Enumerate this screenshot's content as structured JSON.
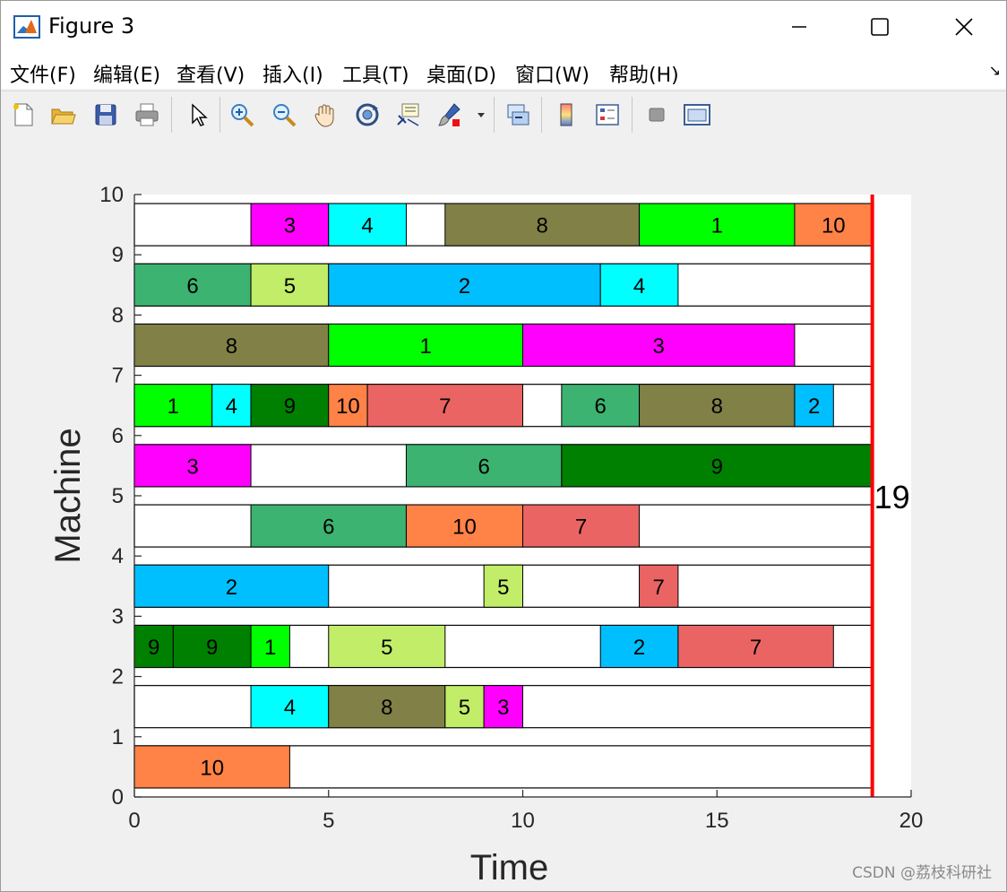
{
  "window": {
    "title": "Figure 3",
    "icon": "matlab-icon",
    "controls": {
      "minimize": "minimize-icon",
      "maximize": "maximize-icon",
      "close": "close-icon"
    }
  },
  "menu": {
    "items": [
      "文件(F)",
      "编辑(E)",
      "查看(V)",
      "插入(I)",
      "工具(T)",
      "桌面(D)",
      "窗口(W)",
      "帮助(H)"
    ],
    "corner": "↘"
  },
  "toolbar": {
    "buttons": [
      "new-figure-icon",
      "open-file-icon",
      "save-icon",
      "print-icon",
      "select-arrow-icon",
      "zoom-in-icon",
      "zoom-out-icon",
      "pan-hand-icon",
      "rotate-3d-icon",
      "data-cursor-icon",
      "brush-icon",
      "link-plot-icon",
      "colorbar-icon",
      "legend-icon",
      "hide-tools-icon",
      "dock-icon"
    ]
  },
  "chart_data": {
    "type": "gantt",
    "xlabel": "Time",
    "ylabel": "Machine",
    "xlim": [
      0,
      20
    ],
    "ylim": [
      0,
      10
    ],
    "xticks": [
      "0",
      "5",
      "10",
      "15",
      "20"
    ],
    "yticks": [
      "0",
      "1",
      "2",
      "3",
      "4",
      "5",
      "6",
      "7",
      "8",
      "9",
      "10"
    ],
    "makespan": 19,
    "makespan_label": "19",
    "makespan_color": "#ff0000",
    "job_colors": {
      "1": "#00ff00",
      "2": "#00bfff",
      "3": "#ff00ff",
      "4": "#00ffff",
      "5": "#c1ed68",
      "6": "#3cb371",
      "7": "#eb6464",
      "8": "#808047",
      "9": "#008000",
      "10": "#ff8247"
    },
    "machines": [
      {
        "machine": 1,
        "ops": [
          {
            "job": "10",
            "start": 0,
            "end": 4
          }
        ]
      },
      {
        "machine": 2,
        "ops": [
          {
            "job": "4",
            "start": 3,
            "end": 5
          },
          {
            "job": "8",
            "start": 5,
            "end": 8
          },
          {
            "job": "5",
            "start": 8,
            "end": 9
          },
          {
            "job": "3",
            "start": 9,
            "end": 10
          }
        ]
      },
      {
        "machine": 3,
        "ops": [
          {
            "job": "9",
            "start": 0,
            "end": 1
          },
          {
            "job": "9",
            "start": 1,
            "end": 3
          },
          {
            "job": "1",
            "start": 3,
            "end": 4
          },
          {
            "job": "5",
            "start": 5,
            "end": 8
          },
          {
            "job": "2",
            "start": 12,
            "end": 14
          },
          {
            "job": "7",
            "start": 14,
            "end": 18
          }
        ]
      },
      {
        "machine": 4,
        "ops": [
          {
            "job": "2",
            "start": 0,
            "end": 5
          },
          {
            "job": "5",
            "start": 9,
            "end": 10
          },
          {
            "job": "7",
            "start": 13,
            "end": 14
          }
        ]
      },
      {
        "machine": 5,
        "ops": [
          {
            "job": "6",
            "start": 3,
            "end": 7
          },
          {
            "job": "10",
            "start": 7,
            "end": 10
          },
          {
            "job": "7",
            "start": 10,
            "end": 13
          }
        ]
      },
      {
        "machine": 6,
        "ops": [
          {
            "job": "3",
            "start": 0,
            "end": 3
          },
          {
            "job": "6",
            "start": 7,
            "end": 11
          },
          {
            "job": "9",
            "start": 11,
            "end": 19
          }
        ]
      },
      {
        "machine": 7,
        "ops": [
          {
            "job": "1",
            "start": 0,
            "end": 2
          },
          {
            "job": "4",
            "start": 2,
            "end": 3
          },
          {
            "job": "9",
            "start": 3,
            "end": 5
          },
          {
            "job": "10",
            "start": 5,
            "end": 6
          },
          {
            "job": "7",
            "start": 6,
            "end": 10
          },
          {
            "job": "6",
            "start": 11,
            "end": 13
          },
          {
            "job": "8",
            "start": 13,
            "end": 17
          },
          {
            "job": "2",
            "start": 17,
            "end": 18
          }
        ]
      },
      {
        "machine": 8,
        "ops": [
          {
            "job": "8",
            "start": 0,
            "end": 5
          },
          {
            "job": "1",
            "start": 5,
            "end": 10
          },
          {
            "job": "3",
            "start": 10,
            "end": 17
          }
        ]
      },
      {
        "machine": 9,
        "ops": [
          {
            "job": "6",
            "start": 0,
            "end": 3
          },
          {
            "job": "5",
            "start": 3,
            "end": 5
          },
          {
            "job": "2",
            "start": 5,
            "end": 12
          },
          {
            "job": "4",
            "start": 12,
            "end": 14
          }
        ]
      },
      {
        "machine": 10,
        "ops": [
          {
            "job": "3",
            "start": 3,
            "end": 5
          },
          {
            "job": "4",
            "start": 5,
            "end": 7
          },
          {
            "job": "8",
            "start": 8,
            "end": 13
          },
          {
            "job": "1",
            "start": 13,
            "end": 17
          },
          {
            "job": "10",
            "start": 17,
            "end": 19
          }
        ]
      }
    ]
  },
  "watermark": "CSDN @荔枝科研社"
}
